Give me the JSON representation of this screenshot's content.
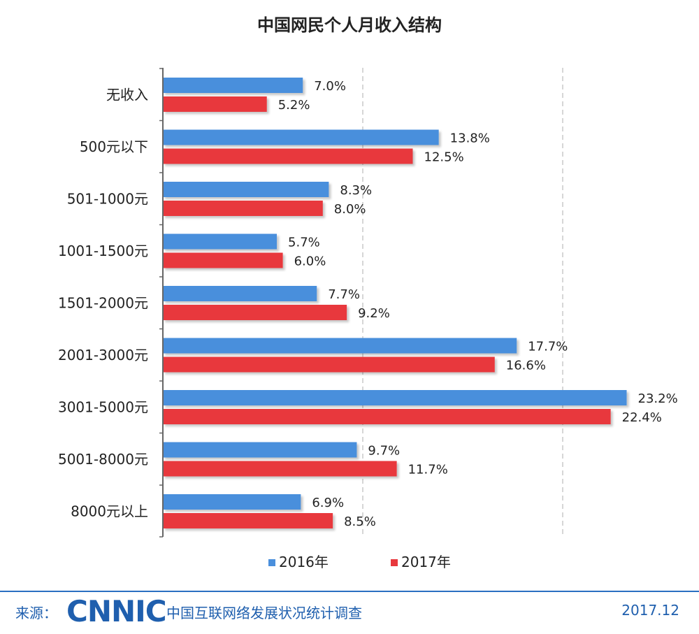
{
  "chart_data": {
    "type": "bar",
    "orientation": "horizontal",
    "title": "中国网民个人月收入结构",
    "categories": [
      "无收入",
      "500元以下",
      "501-1000元",
      "1001-1500元",
      "1501-2000元",
      "2001-3000元",
      "3001-5000元",
      "5001-8000元",
      "8000元以上"
    ],
    "series": [
      {
        "name": "2016年",
        "color": "#4a8fdc",
        "values": [
          7.0,
          13.8,
          8.3,
          5.7,
          7.7,
          17.7,
          23.2,
          9.7,
          6.9
        ]
      },
      {
        "name": "2017年",
        "color": "#e8383d",
        "values": [
          5.2,
          12.5,
          8.0,
          6.0,
          9.2,
          16.6,
          22.4,
          11.7,
          8.5
        ]
      }
    ],
    "value_suffix": "%",
    "xlim": [
      0,
      24
    ],
    "gridlines": [
      10,
      20
    ],
    "legend_position": "bottom-center"
  },
  "footer": {
    "source_label": "来源：",
    "logo_text": "CNNIC",
    "org_name": "中国互联网络发展状况统计调查",
    "date": "2017.12"
  }
}
